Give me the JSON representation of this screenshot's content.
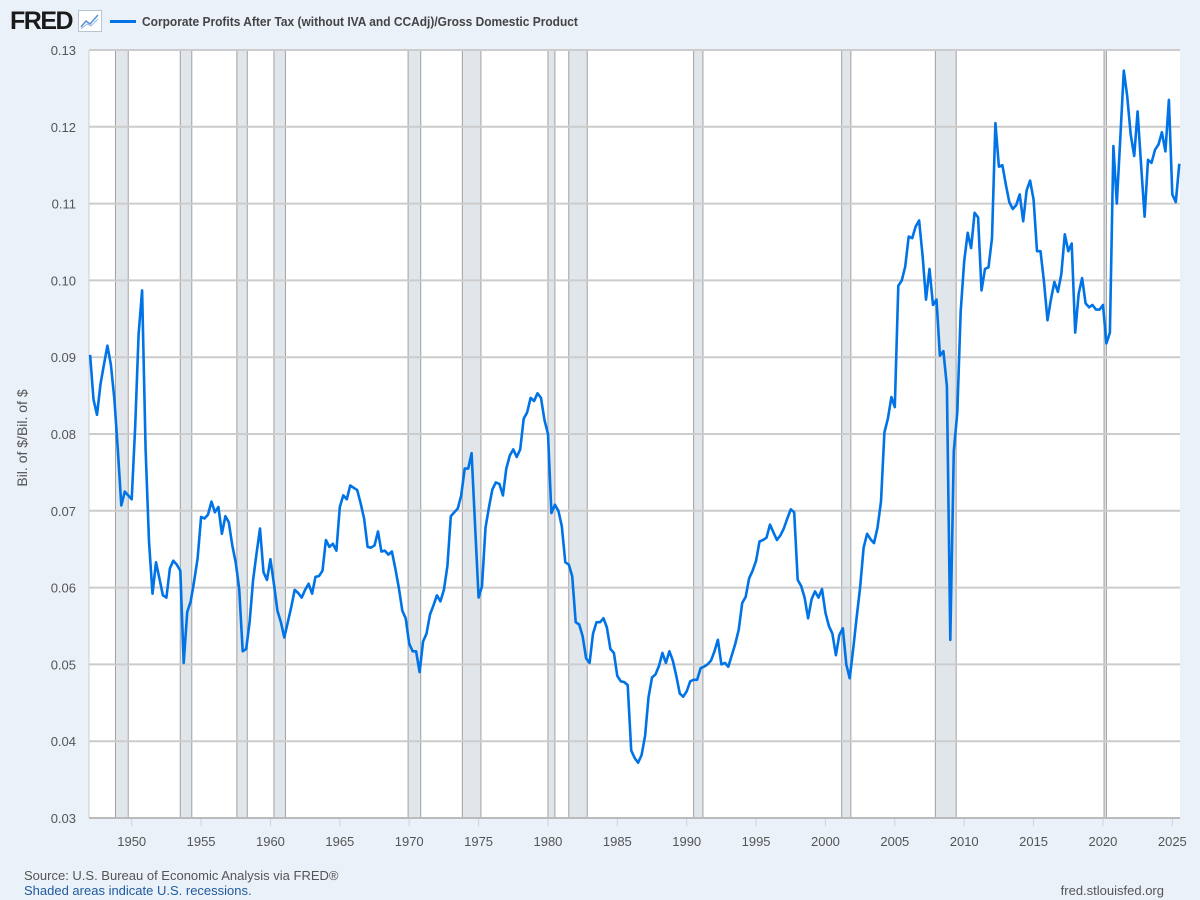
{
  "header": {
    "logo": "FRED",
    "logo_icon": "line-chart-icon"
  },
  "footer": {
    "source": "Source: U.S. Bureau of Economic Analysis via FRED®",
    "recession_note": "Shaded areas indicate U.S. recessions.",
    "site": "fred.stlouisfed.org"
  },
  "colors": {
    "line": "#0073e6",
    "recession": "#e1e6eb",
    "grid": "#cccccc",
    "background": "#eaf1f9"
  },
  "chart_data": {
    "type": "line",
    "title": "",
    "legend": [
      "Corporate Profits After Tax (without IVA and CCAdj)/Gross Domestic Product"
    ],
    "legend_placement": "top-left",
    "xlabel": "",
    "ylabel": "Bil. of $/Bil. of $",
    "xlim": [
      1947.0,
      2025.56
    ],
    "ylim": [
      0.03,
      0.13
    ],
    "grid": true,
    "x_ticks": [
      "1950",
      "1955",
      "1960",
      "1965",
      "1970",
      "1975",
      "1980",
      "1985",
      "1990",
      "1995",
      "2000",
      "2005",
      "2010",
      "2015",
      "2020",
      "2025"
    ],
    "y_ticks": [
      "0.03",
      "0.04",
      "0.05",
      "0.06",
      "0.07",
      "0.08",
      "0.09",
      "0.10",
      "0.11",
      "0.12",
      "0.13"
    ],
    "recessions": [
      [
        1948.83,
        1949.75
      ],
      [
        1953.5,
        1954.33
      ],
      [
        1957.58,
        1958.33
      ],
      [
        1960.25,
        1961.08
      ],
      [
        1969.92,
        1970.83
      ],
      [
        1973.83,
        1975.17
      ],
      [
        1980.0,
        1980.5
      ],
      [
        1981.5,
        1982.83
      ],
      [
        1990.5,
        1991.17
      ],
      [
        2001.17,
        2001.83
      ],
      [
        2007.92,
        2009.42
      ],
      [
        2020.08,
        2020.25
      ]
    ],
    "series": [
      {
        "name": "Corporate Profits After Tax (without IVA and CCAdj)/Gross Domestic Product",
        "x_start": 1947.0,
        "x_step": 0.25,
        "values": [
          0.0903,
          0.0845,
          0.0825,
          0.0865,
          0.089,
          0.0915,
          0.089,
          0.0845,
          0.078,
          0.0707,
          0.0725,
          0.072,
          0.0715,
          0.081,
          0.093,
          0.0987,
          0.078,
          0.066,
          0.0592,
          0.0633,
          0.0612,
          0.059,
          0.0587,
          0.0625,
          0.0635,
          0.063,
          0.0622,
          0.0502,
          0.0568,
          0.0582,
          0.0608,
          0.0638,
          0.0692,
          0.069,
          0.0695,
          0.0712,
          0.0698,
          0.0705,
          0.067,
          0.0693,
          0.0685,
          0.0655,
          0.0632,
          0.0598,
          0.0517,
          0.052,
          0.0555,
          0.061,
          0.0645,
          0.0677,
          0.062,
          0.061,
          0.0637,
          0.0605,
          0.057,
          0.0555,
          0.0535,
          0.0555,
          0.0575,
          0.0597,
          0.0593,
          0.0587,
          0.0597,
          0.0605,
          0.0592,
          0.0614,
          0.0615,
          0.0622,
          0.0662,
          0.0653,
          0.0657,
          0.0648,
          0.0705,
          0.072,
          0.0715,
          0.0733,
          0.073,
          0.0727,
          0.071,
          0.069,
          0.0653,
          0.0652,
          0.0655,
          0.0673,
          0.0647,
          0.0648,
          0.0643,
          0.0647,
          0.0625,
          0.06,
          0.057,
          0.056,
          0.0527,
          0.0517,
          0.0517,
          0.049,
          0.053,
          0.054,
          0.0565,
          0.0577,
          0.059,
          0.0582,
          0.0597,
          0.0628,
          0.0693,
          0.0698,
          0.0703,
          0.072,
          0.0755,
          0.0755,
          0.0775,
          0.068,
          0.0587,
          0.0602,
          0.0678,
          0.0705,
          0.0728,
          0.0737,
          0.0735,
          0.072,
          0.0755,
          0.0772,
          0.078,
          0.077,
          0.078,
          0.082,
          0.0828,
          0.0847,
          0.0843,
          0.0853,
          0.0847,
          0.0818,
          0.08,
          0.0697,
          0.0708,
          0.07,
          0.068,
          0.0633,
          0.063,
          0.0615,
          0.0555,
          0.0552,
          0.0537,
          0.0508,
          0.0502,
          0.054,
          0.0555,
          0.0555,
          0.056,
          0.0548,
          0.052,
          0.0515,
          0.0485,
          0.0478,
          0.0477,
          0.0473,
          0.0388,
          0.0378,
          0.0372,
          0.0382,
          0.0407,
          0.0457,
          0.0483,
          0.0487,
          0.0498,
          0.0515,
          0.0502,
          0.0517,
          0.0505,
          0.0485,
          0.0462,
          0.0458,
          0.0465,
          0.0478,
          0.048,
          0.048,
          0.0495,
          0.0497,
          0.05,
          0.0505,
          0.0517,
          0.0532,
          0.05,
          0.0502,
          0.0497,
          0.0512,
          0.0527,
          0.0545,
          0.058,
          0.0588,
          0.0612,
          0.0622,
          0.0635,
          0.066,
          0.0662,
          0.0665,
          0.0682,
          0.0672,
          0.0662,
          0.0668,
          0.0677,
          0.069,
          0.0702,
          0.0698,
          0.061,
          0.0602,
          0.0587,
          0.056,
          0.0585,
          0.0595,
          0.0587,
          0.0598,
          0.0567,
          0.055,
          0.054,
          0.0512,
          0.0538,
          0.0547,
          0.05,
          0.0482,
          0.052,
          0.0562,
          0.06,
          0.0652,
          0.067,
          0.0663,
          0.0658,
          0.0678,
          0.0712,
          0.0802,
          0.082,
          0.0848,
          0.0835,
          0.0993,
          0.1,
          0.1018,
          0.1057,
          0.1055,
          0.107,
          0.1078,
          0.1032,
          0.0975,
          0.1015,
          0.0968,
          0.0975,
          0.0902,
          0.0908,
          0.0862,
          0.0532,
          0.0778,
          0.0828,
          0.096,
          0.1025,
          0.1062,
          0.1042,
          0.1088,
          0.1082,
          0.0987,
          0.1015,
          0.1017,
          0.1055,
          0.1205,
          0.1148,
          0.115,
          0.1125,
          0.1102,
          0.1093,
          0.1098,
          0.1112,
          0.1077,
          0.1117,
          0.113,
          0.1105,
          0.1038,
          0.1038,
          0.0998,
          0.0948,
          0.0975,
          0.0998,
          0.0985,
          0.1008,
          0.106,
          0.1038,
          0.1048,
          0.0932,
          0.0983,
          0.1003,
          0.097,
          0.0965,
          0.0968,
          0.0962,
          0.0962,
          0.0968,
          0.0918,
          0.0932,
          0.1175,
          0.11,
          0.1185,
          0.1273,
          0.124,
          0.119,
          0.1162,
          0.122,
          0.115,
          0.1083,
          0.1157,
          0.1153,
          0.117,
          0.1177,
          0.1193,
          0.1168,
          0.1235,
          0.1112,
          0.1102,
          0.1152
        ]
      }
    ]
  }
}
